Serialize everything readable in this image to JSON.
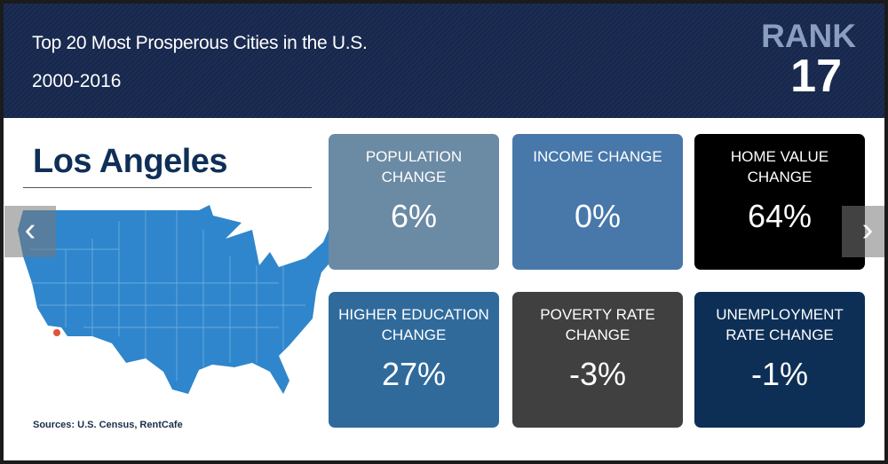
{
  "header": {
    "title": "Top 20 Most Prosperous Cities in the U.S.",
    "years": "2000-2016",
    "rank_label": "RANK",
    "rank": "17"
  },
  "city": "Los Angeles",
  "sources": "Sources: U.S. Census, RentCafe",
  "map": {
    "fill": "#2f86cc",
    "marker_color": "#e0533a"
  },
  "cards": [
    {
      "label": "POPULATION CHANGE",
      "value": "6%",
      "color": "#6b8aa4"
    },
    {
      "label": "INCOME CHANGE",
      "value": "0%",
      "color": "#4878aa"
    },
    {
      "label": "HOME VALUE CHANGE",
      "value": "64%",
      "color": "#000000"
    },
    {
      "label": "HIGHER EDUCATION CHANGE",
      "value": "27%",
      "color": "#2f6a9b"
    },
    {
      "label": "POVERTY RATE CHANGE",
      "value": "-3%",
      "color": "#404040"
    },
    {
      "label": "UNEMPLOYMENT RATE CHANGE",
      "value": "-1%",
      "color": "#0d2f56"
    }
  ],
  "nav": {
    "prev_icon": "chevron-left-icon",
    "next_icon": "chevron-right-icon"
  }
}
